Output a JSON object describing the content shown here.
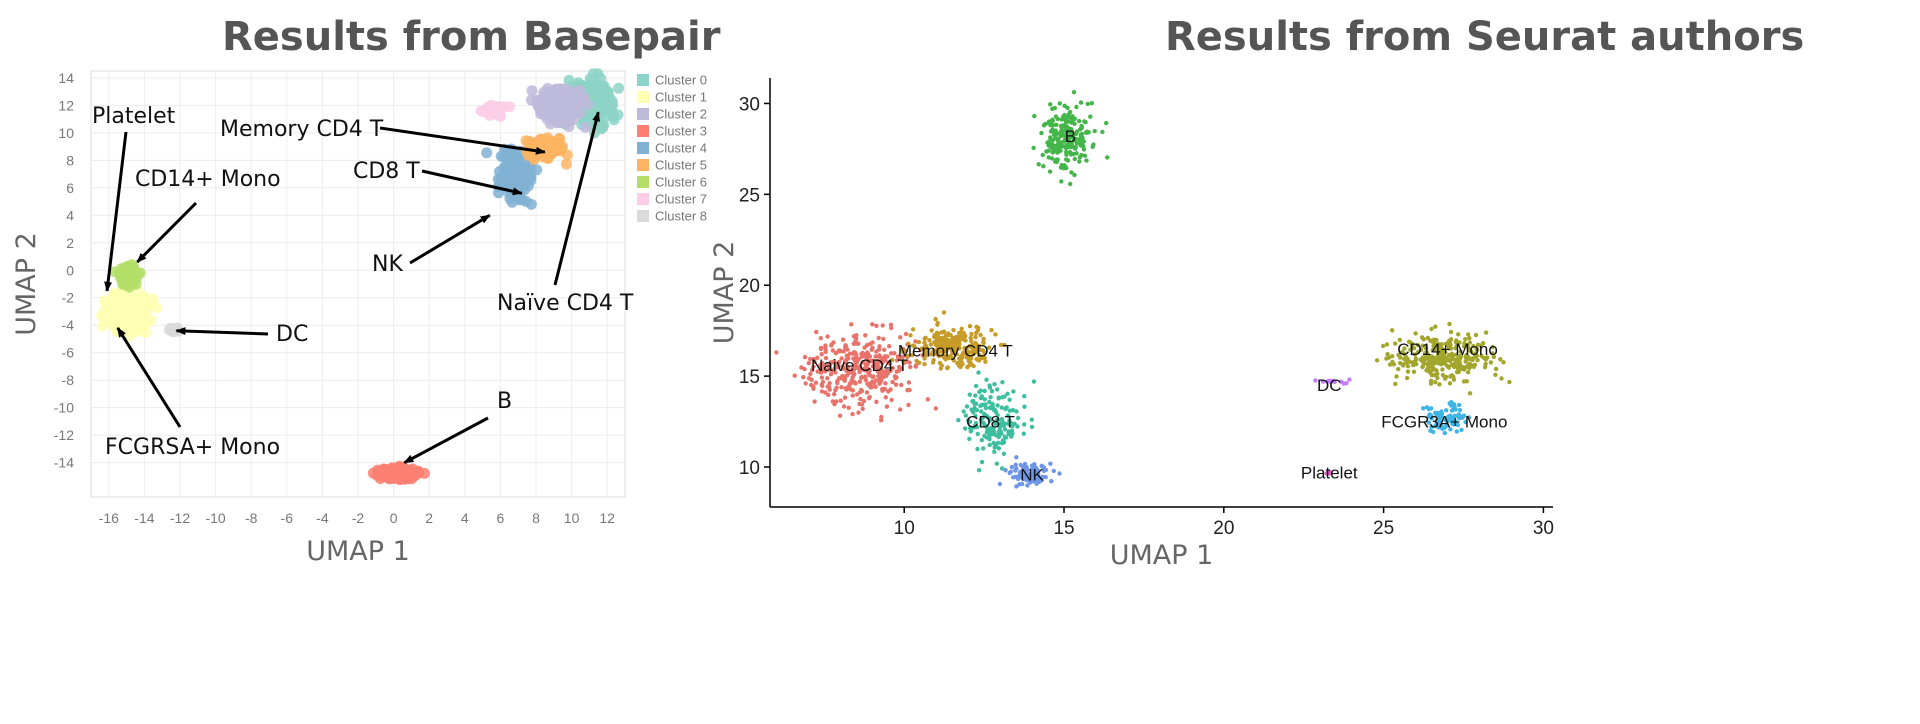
{
  "titles": {
    "left": "Results from Basepair",
    "right": "Results from Seurat authors"
  },
  "chart_data": [
    {
      "type": "scatter",
      "title": "Results from Basepair",
      "xlabel": "UMAP 1",
      "ylabel": "UMAP 2",
      "xlim": [
        -17,
        13
      ],
      "ylim": [
        -16.5,
        14.5
      ],
      "xticks": [
        -16,
        -14,
        -12,
        -10,
        -8,
        -6,
        -4,
        -2,
        0,
        2,
        4,
        6,
        8,
        10,
        12
      ],
      "yticks": [
        -14,
        -12,
        -10,
        -8,
        -6,
        -4,
        -2,
        0,
        2,
        4,
        6,
        8,
        10,
        12,
        14
      ],
      "grid": true,
      "legend_position": "right",
      "legend": [
        {
          "name": "Cluster 0",
          "color": "#8dd3c7"
        },
        {
          "name": "Cluster 1",
          "color": "#ffffb3"
        },
        {
          "name": "Cluster 2",
          "color": "#bebada"
        },
        {
          "name": "Cluster 3",
          "color": "#fb8072"
        },
        {
          "name": "Cluster 4",
          "color": "#80b1d3"
        },
        {
          "name": "Cluster 5",
          "color": "#fdb462"
        },
        {
          "name": "Cluster 6",
          "color": "#b3de69"
        },
        {
          "name": "Cluster 7",
          "color": "#fccde5"
        },
        {
          "name": "Cluster 8",
          "color": "#d9d9d9"
        }
      ],
      "clusters": [
        {
          "name": "Cluster 0",
          "cx": 11.2,
          "cy": 12.2,
          "sx": 0.9,
          "sy": 1.3,
          "n": 240
        },
        {
          "name": "Cluster 1",
          "cx": -15.0,
          "cy": -3.2,
          "sx": 1.0,
          "sy": 1.1,
          "n": 260
        },
        {
          "name": "Cluster 2",
          "cx": 9.3,
          "cy": 12.0,
          "sx": 1.0,
          "sy": 1.0,
          "n": 200
        },
        {
          "name": "Cluster 3",
          "cx": 0.1,
          "cy": -14.8,
          "sx": 0.9,
          "sy": 0.35,
          "n": 180
        },
        {
          "name": "Cluster 4",
          "cx": 6.8,
          "cy": 7.0,
          "sx": 0.7,
          "sy": 1.4,
          "n": 140
        },
        {
          "name": "Cluster 5",
          "cx": 8.6,
          "cy": 8.9,
          "sx": 0.9,
          "sy": 0.6,
          "n": 90
        },
        {
          "name": "Cluster 6",
          "cx": -14.9,
          "cy": -0.4,
          "sx": 0.45,
          "sy": 0.6,
          "n": 60
        },
        {
          "name": "Cluster 7",
          "cx": 5.6,
          "cy": 11.5,
          "sx": 0.6,
          "sy": 0.4,
          "n": 25
        },
        {
          "name": "Cluster 8",
          "cx": -12.3,
          "cy": -4.3,
          "sx": 0.25,
          "sy": 0.2,
          "n": 14
        }
      ],
      "annotations": [
        {
          "text": "Platelet",
          "ax": -16.1,
          "ay": -1.5
        },
        {
          "text": "CD14+ Mono",
          "ax": -14.4,
          "ay": 0.6
        },
        {
          "text": "Memory CD4 T",
          "ax": 8.5,
          "ay": 8.6
        },
        {
          "text": "CD8 T",
          "ax": 7.2,
          "ay": 5.6
        },
        {
          "text": "NK",
          "ax": 5.4,
          "ay": 4.0
        },
        {
          "text": "Naïve CD4 T",
          "ax": 11.5,
          "ay": 11.5
        },
        {
          "text": "DC",
          "ax": -12.2,
          "ay": -4.4
        },
        {
          "text": "FCGRSA+ Mono",
          "ax": -15.5,
          "ay": -4.2
        },
        {
          "text": "B",
          "ax": 0.6,
          "ay": -14.0
        }
      ]
    },
    {
      "type": "scatter",
      "title": "Results from Seurat authors",
      "xlabel": "UMAP 1",
      "ylabel": "UMAP 2",
      "xlim": [
        5.8,
        30.3
      ],
      "ylim": [
        7.8,
        31.4
      ],
      "xticks": [
        10,
        15,
        20,
        25,
        30
      ],
      "yticks": [
        10,
        15,
        20,
        25,
        30
      ],
      "grid": false,
      "clusters": [
        {
          "name": "Naive CD4 T",
          "color": "#e8736b",
          "cx": 8.6,
          "cy": 15.3,
          "sx": 1.05,
          "sy": 1.3,
          "n": 360
        },
        {
          "name": "Memory CD4 T",
          "color": "#c79b28",
          "cx": 11.5,
          "cy": 16.6,
          "sx": 0.9,
          "sy": 0.75,
          "n": 230
        },
        {
          "name": "CD8 T",
          "color": "#3dbf9f",
          "cx": 12.7,
          "cy": 12.7,
          "sx": 0.6,
          "sy": 1.4,
          "n": 170
        },
        {
          "name": "NK",
          "color": "#6f95e8",
          "cx": 13.9,
          "cy": 9.6,
          "sx": 0.45,
          "sy": 0.45,
          "n": 95
        },
        {
          "name": "B",
          "color": "#43b549",
          "cx": 15.1,
          "cy": 28.2,
          "sx": 0.55,
          "sy": 1.15,
          "n": 210
        },
        {
          "name": "CD14+ Mono",
          "color": "#a3a62c",
          "cx": 26.9,
          "cy": 16.1,
          "sx": 1.05,
          "sy": 0.85,
          "n": 300
        },
        {
          "name": "FCGR3A+ Mono",
          "color": "#3fb5e6",
          "cx": 26.9,
          "cy": 12.7,
          "sx": 0.45,
          "sy": 0.5,
          "n": 85
        },
        {
          "name": "DC",
          "color": "#c77cff",
          "cx": 23.3,
          "cy": 14.7,
          "sx": 0.35,
          "sy": 0.07,
          "n": 14
        },
        {
          "name": "Platelet",
          "color": "#e35ac4",
          "cx": 23.3,
          "cy": 9.7,
          "sx": 0.08,
          "sy": 0.06,
          "n": 4
        }
      ],
      "labels": [
        {
          "text": "B",
          "x": 15.2,
          "y": 28.2
        },
        {
          "text": "Naive CD4 T",
          "x": 8.6,
          "y": 15.6
        },
        {
          "text": "Memory CD4 T",
          "x": 11.6,
          "y": 16.4
        },
        {
          "text": "CD8 T",
          "x": 12.7,
          "y": 12.5
        },
        {
          "text": "NK",
          "x": 14.0,
          "y": 9.6
        },
        {
          "text": "CD14+ Mono",
          "x": 27.0,
          "y": 16.5
        },
        {
          "text": "FCGR3A+ Mono",
          "x": 26.9,
          "y": 12.5
        },
        {
          "text": "DC",
          "x": 23.3,
          "y": 14.5
        },
        {
          "text": "Platelet",
          "x": 23.3,
          "y": 9.7
        }
      ]
    }
  ]
}
